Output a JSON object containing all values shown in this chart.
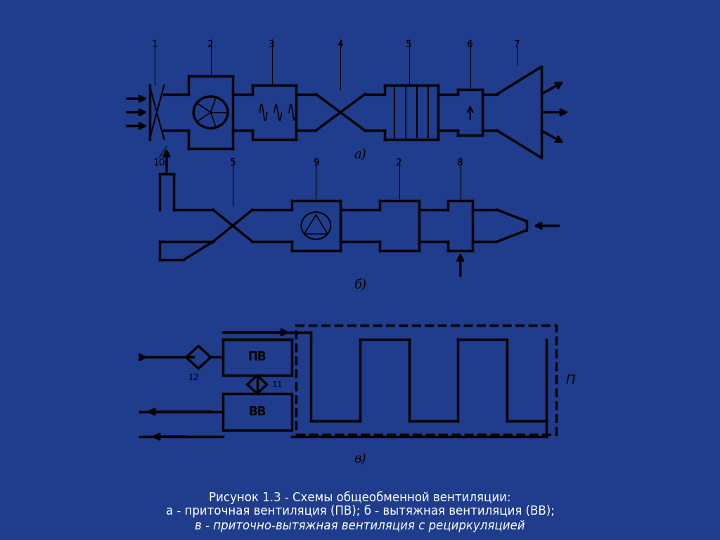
{
  "bg_color": "#1f3d8c",
  "panel_bg": "#ffffff",
  "lc": "#000000",
  "lw": 2.0,
  "title_line1": "Рисунок 1.3 - Схемы общеобменной вентиляции:",
  "title_line2": "а - приточная вентиляция (ПВ); б - вытяжная вентиляция (ВВ);",
  "title_line3": "в - приточно-вытяжная вентиляция с рециркуляцией",
  "title_color": "#ffffff"
}
